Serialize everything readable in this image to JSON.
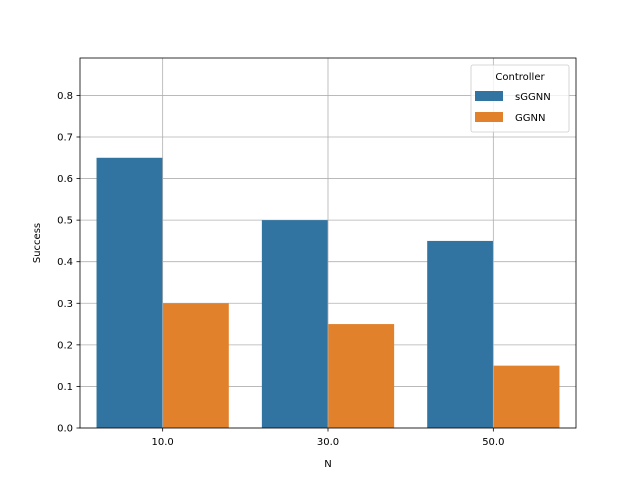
{
  "chart_data": {
    "type": "bar",
    "title": "",
    "xlabel": "N",
    "ylabel": "Success",
    "categories": [
      "10.0",
      "30.0",
      "50.0"
    ],
    "series": [
      {
        "name": "sGGNN",
        "color": "#3274a1",
        "values": [
          0.65,
          0.5,
          0.45
        ]
      },
      {
        "name": "GGNN",
        "color": "#e1812c",
        "values": [
          0.3,
          0.25,
          0.15
        ]
      }
    ],
    "ylim": [
      0,
      0.89
    ],
    "yticks": [
      "0.0",
      "0.1",
      "0.2",
      "0.3",
      "0.4",
      "0.5",
      "0.6",
      "0.7",
      "0.8"
    ],
    "grid": true,
    "legend": {
      "title": "Controller",
      "position": "top-right"
    }
  }
}
